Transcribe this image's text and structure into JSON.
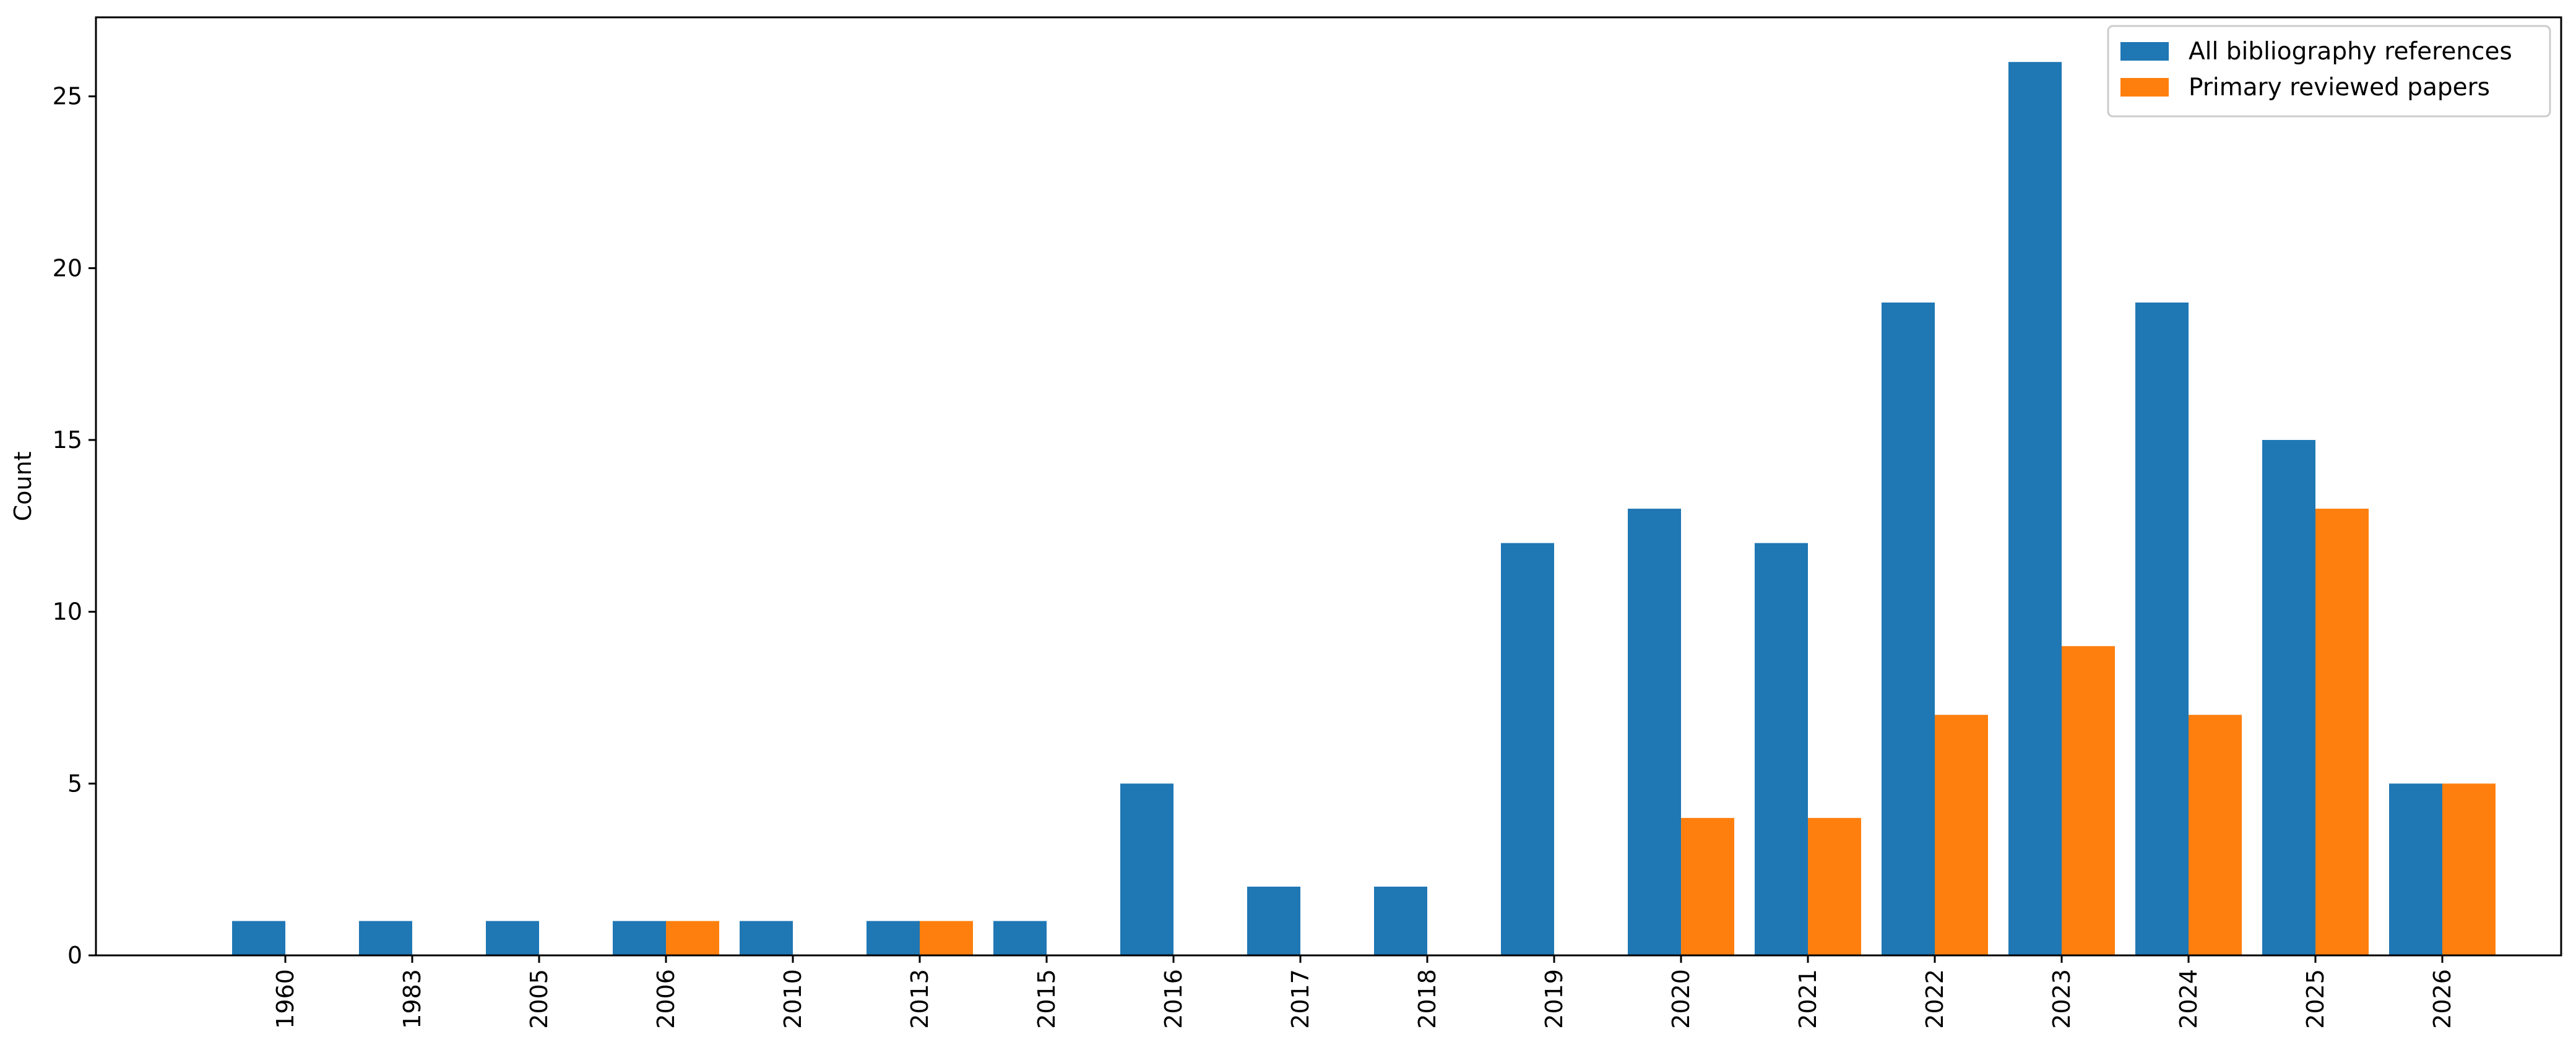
{
  "chart_data": {
    "type": "bar",
    "title": "",
    "xlabel": "",
    "ylabel": "Count",
    "ylim": [
      0,
      27.3
    ],
    "yticks": [
      0,
      5,
      10,
      15,
      20,
      25
    ],
    "categories": [
      "1960",
      "1983",
      "2005",
      "2006",
      "2010",
      "2013",
      "2015",
      "2016",
      "2017",
      "2018",
      "2019",
      "2020",
      "2021",
      "2022",
      "2023",
      "2024",
      "2025",
      "2026"
    ],
    "series": [
      {
        "name": "All bibliography references",
        "color": "#1f77b4",
        "values": [
          1,
          1,
          1,
          1,
          1,
          1,
          1,
          5,
          2,
          2,
          12,
          13,
          12,
          19,
          26,
          19,
          15,
          5
        ]
      },
      {
        "name": "Primary reviewed papers",
        "color": "#ff7f0e",
        "values": [
          0,
          0,
          0,
          1,
          0,
          1,
          0,
          0,
          0,
          0,
          0,
          4,
          4,
          7,
          9,
          7,
          13,
          5
        ]
      }
    ],
    "grid": false,
    "legend_position": "top-right"
  }
}
